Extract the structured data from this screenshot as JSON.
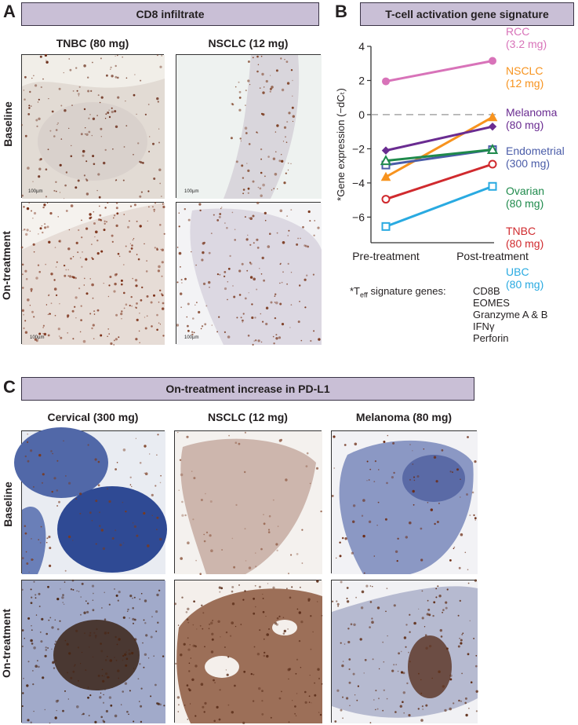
{
  "panelA": {
    "letter": "A",
    "title": "CD8 infiltrate",
    "columns": [
      "TNBC (80 mg)",
      "NSCLC (12 mg)"
    ],
    "rows": [
      "Baseline",
      "On-treatment"
    ],
    "scalebars": [
      "100µm",
      "100µm",
      "100µm",
      "100µm"
    ]
  },
  "panelB": {
    "letter": "B",
    "title": "T-cell activation gene signature",
    "footnote_lead": "*T",
    "footnote_sub": "eff",
    "footnote_tail": " signature genes:",
    "genes": [
      "CD8B",
      "EOMES",
      "Granzyme A & B",
      "IFNγ",
      "Perforin"
    ]
  },
  "panelC": {
    "letter": "C",
    "title": "On-treatment increase in PD-L1",
    "columns": [
      "Cervical (300 mg)",
      "NSCLC (12 mg)",
      "Melanoma (80 mg)"
    ],
    "rows": [
      "Baseline",
      "On-treatment"
    ]
  },
  "chart_data": {
    "type": "line",
    "title": "T-cell activation gene signature",
    "ylabel": "*Gene expression (−dCₜ)",
    "xlabel": "",
    "categories": [
      "Pre-treatment",
      "Post-treatment"
    ],
    "ylim": [
      -7.5,
      4
    ],
    "yticks": [
      4,
      2,
      0,
      -2,
      -4,
      -6
    ],
    "reference_line": 0,
    "grid": false,
    "legend": "right",
    "series": [
      {
        "name": "RCC",
        "dose": "(3.2 mg)",
        "values": [
          1.95,
          3.15
        ],
        "color": "#d873b9",
        "marker": "circle-filled"
      },
      {
        "name": "NSCLC",
        "dose": "(12 mg)",
        "values": [
          -3.65,
          -0.15
        ],
        "color": "#f7931e",
        "marker": "triangle-filled"
      },
      {
        "name": "Melanoma",
        "dose": "(80 mg)",
        "values": [
          -2.1,
          -0.7
        ],
        "color": "#6a2c91",
        "marker": "diamond-filled"
      },
      {
        "name": "Endometrial",
        "dose": "(300 mg)",
        "values": [
          -2.95,
          -2.05
        ],
        "color": "#4a5ca8",
        "marker": "square-open"
      },
      {
        "name": "Ovarian",
        "dose": "(80 mg)",
        "values": [
          -2.7,
          -2.05
        ],
        "color": "#1f8a4c",
        "marker": "triangle-open"
      },
      {
        "name": "TNBC",
        "dose": "(80 mg)",
        "values": [
          -4.95,
          -2.9
        ],
        "color": "#d02a2e",
        "marker": "circle-open"
      },
      {
        "name": "UBC",
        "dose": "(80 mg)",
        "values": [
          -6.55,
          -4.2
        ],
        "color": "#29aae1",
        "marker": "square-open"
      }
    ]
  }
}
